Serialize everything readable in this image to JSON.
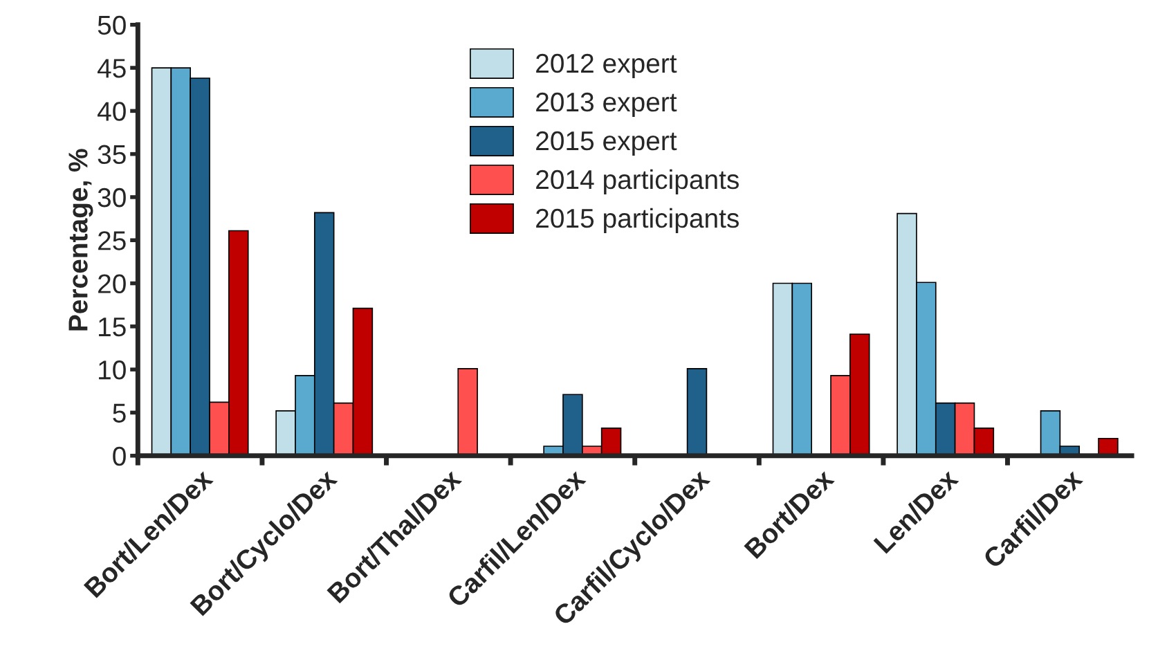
{
  "chart_data": {
    "type": "bar",
    "ylabel": "Percentage, %",
    "categories": [
      "Bort/Len/Dex",
      "Bort/Cyclo/Dex",
      "Bort/Thal/Dex",
      "Carfil/Len/Dex",
      "Carfil/Cyclo/Dex",
      "Bort/Dex",
      "Len/Dex",
      "Carfil/Dex"
    ],
    "series": [
      {
        "name": "2012 expert",
        "color": "#c0dfe9",
        "values": [
          45,
          5.2,
          null,
          null,
          null,
          20,
          28.1,
          null
        ]
      },
      {
        "name": "2013 expert",
        "color": "#5aaad0",
        "values": [
          45,
          9.3,
          null,
          1.1,
          null,
          20,
          20.1,
          5.2
        ]
      },
      {
        "name": "2015 expert",
        "color": "#1f618a",
        "values": [
          43.8,
          28.2,
          null,
          7.1,
          10.1,
          null,
          6.1,
          1.1
        ]
      },
      {
        "name": "2014 participants",
        "color": "#ff5050",
        "values": [
          6.2,
          6.1,
          10.1,
          1.1,
          null,
          9.3,
          6.1,
          null
        ]
      },
      {
        "name": "2015 participants",
        "color": "#c00000",
        "values": [
          26.1,
          17.1,
          null,
          3.2,
          null,
          14.1,
          3.2,
          2.0
        ]
      }
    ],
    "ylim": [
      0,
      50
    ],
    "yticks": [
      0,
      5,
      10,
      15,
      20,
      25,
      30,
      35,
      40,
      45,
      50
    ],
    "grid": false,
    "legend": "top"
  }
}
